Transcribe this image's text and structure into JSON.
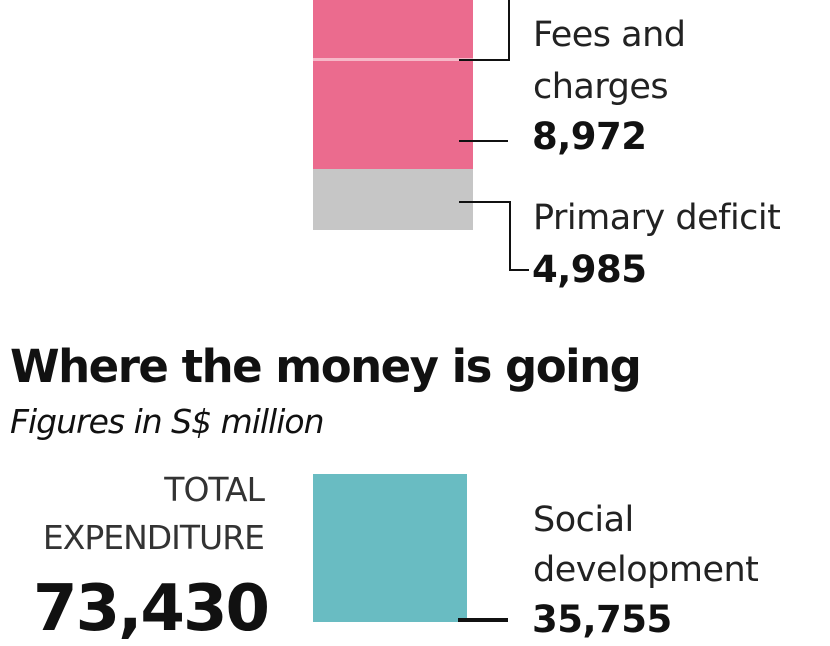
{
  "colors": {
    "revenue_pink": "#eb6b8e",
    "divider_pink": "#f6b8c8",
    "deficit_gray": "#c6c6c6",
    "social_teal": "#69bcc2",
    "text": "#111111"
  },
  "top_chart": {
    "segments": [
      {
        "label": "Fees and charges",
        "value": "8,972"
      },
      {
        "label": "Primary deficit",
        "value": "4,985"
      }
    ]
  },
  "bottom_chart": {
    "title": "Where the money is going",
    "subtitle": "Figures in S$ million",
    "total_label_line1": "TOTAL",
    "total_label_line2": "EXPENDITURE",
    "total_value": "73,430",
    "segments": [
      {
        "label_line1": "Social",
        "label_line2": "development",
        "value": "35,755"
      }
    ]
  },
  "chart_data": [
    {
      "type": "bar",
      "title": "",
      "stacked": true,
      "unit": "S$ million",
      "categories": [
        "Fees and charges",
        "Primary deficit"
      ],
      "values": [
        8972,
        4985
      ],
      "colors": [
        "#eb6b8e",
        "#c6c6c6"
      ],
      "note": "Partially visible stacked bar of revenue sources; upper segments cropped"
    },
    {
      "type": "bar",
      "title": "Where the money is going",
      "subtitle": "Figures in S$ million",
      "stacked": true,
      "unit": "S$ million",
      "total": {
        "label": "TOTAL EXPENDITURE",
        "value": 73430
      },
      "categories": [
        "Social development"
      ],
      "values": [
        35755
      ],
      "colors": [
        "#69bcc2"
      ],
      "note": "Partially visible stacked expenditure bar; lower segments cropped"
    }
  ]
}
